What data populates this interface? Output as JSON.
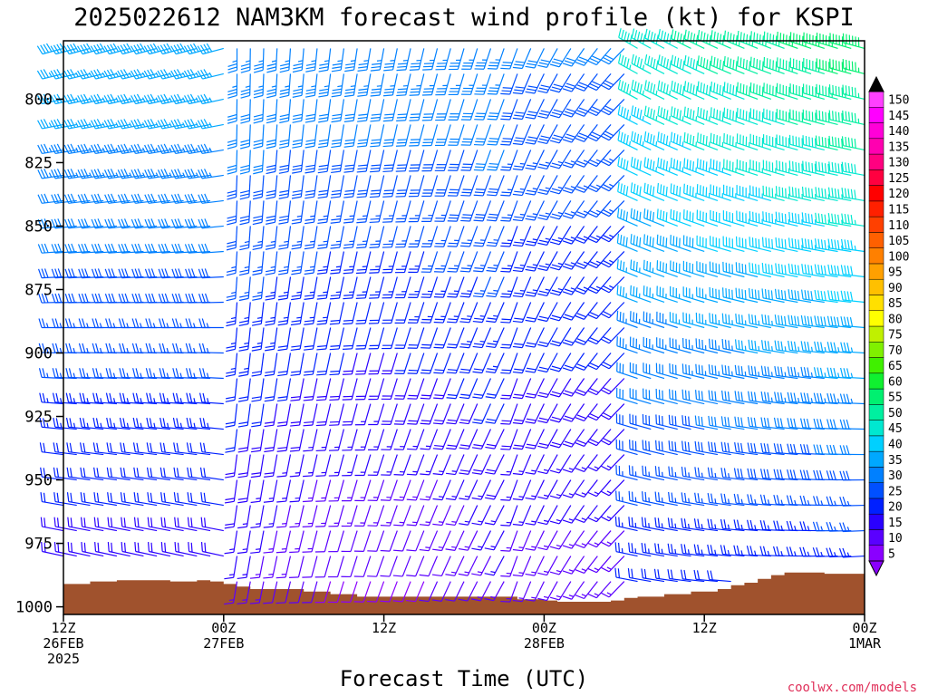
{
  "chart_data": {
    "type": "wind-barb-profile",
    "title": "2025022612 NAM3KM forecast wind profile (kt) for KSPI",
    "xlabel": "Forecast Time (UTC)",
    "credit": "coolwx.com/models",
    "y_axis": {
      "quantity": "pressure (hPa)",
      "range": [
        1003,
        777
      ],
      "ticks": [
        800,
        825,
        850,
        875,
        900,
        925,
        950,
        975,
        1000
      ],
      "tick_labels": [
        "800",
        "825",
        "850",
        "875",
        "900",
        "925",
        "950",
        "975",
        "1000"
      ]
    },
    "x_axis": {
      "range_hours": [
        0,
        60
      ],
      "ticks": [
        {
          "hour": 0,
          "lines": [
            "12Z",
            "26FEB",
            "2025"
          ]
        },
        {
          "hour": 12,
          "lines": [
            "00Z",
            "27FEB"
          ]
        },
        {
          "hour": 24,
          "lines": [
            "12Z"
          ]
        },
        {
          "hour": 36,
          "lines": [
            "00Z",
            "28FEB"
          ]
        },
        {
          "hour": 48,
          "lines": [
            "12Z"
          ]
        },
        {
          "hour": 60,
          "lines": [
            "00Z",
            "1MAR"
          ]
        }
      ]
    },
    "colorbar": {
      "levels": [
        5,
        10,
        15,
        20,
        25,
        30,
        35,
        40,
        45,
        50,
        55,
        60,
        65,
        70,
        75,
        80,
        85,
        90,
        95,
        100,
        105,
        110,
        115,
        120,
        125,
        130,
        135,
        140,
        145,
        150
      ],
      "labels": [
        "5",
        "10",
        "15",
        "20",
        "25",
        "30",
        "35",
        "40",
        "45",
        "50",
        "55",
        "60",
        "65",
        "70",
        "75",
        "80",
        "85",
        "90",
        "95",
        "100",
        "105",
        "110",
        "115",
        "120",
        "125",
        "130",
        "135",
        "140",
        "145",
        "150"
      ],
      "colors": [
        "#8a00ff",
        "#5a00ff",
        "#2a00ff",
        "#0020ff",
        "#0050ff",
        "#0080ff",
        "#00a8ff",
        "#00d0ff",
        "#00e8d0",
        "#00f0a0",
        "#00f070",
        "#10f030",
        "#40f000",
        "#80f000",
        "#c0f000",
        "#ffff00",
        "#ffe000",
        "#ffc000",
        "#ffa000",
        "#ff8000",
        "#ff6000",
        "#ff4000",
        "#ff2000",
        "#ff0000",
        "#ff0040",
        "#ff0080",
        "#ff00b0",
        "#ff00d8",
        "#ff00ff",
        "#ff40ff"
      ],
      "min_arrow_color": "#8a00ff",
      "max_arrow_color": "#000000"
    },
    "barb_pressure_levels": [
      780,
      790,
      800,
      810,
      820,
      830,
      840,
      850,
      860,
      870,
      880,
      890,
      900,
      910,
      920,
      930,
      940,
      950,
      960,
      970,
      980,
      990,
      1000
    ],
    "barb_hours": [
      0,
      1,
      2,
      3,
      4,
      5,
      6,
      7,
      8,
      9,
      10,
      11,
      12,
      13,
      14,
      15,
      16,
      17,
      18,
      19,
      20,
      21,
      22,
      23,
      24,
      25,
      26,
      27,
      28,
      29,
      30,
      31,
      32,
      33,
      34,
      35,
      36,
      37,
      38,
      39,
      40,
      41,
      42,
      43,
      44,
      45,
      46,
      47,
      48,
      49,
      50,
      51,
      52,
      53,
      54,
      55,
      56,
      57,
      58,
      59,
      60
    ],
    "surface_pressure": [
      {
        "hour": 0,
        "p": 991
      },
      {
        "hour": 2,
        "p": 990
      },
      {
        "hour": 4,
        "p": 989.5
      },
      {
        "hour": 6,
        "p": 989.5
      },
      {
        "hour": 8,
        "p": 990
      },
      {
        "hour": 10,
        "p": 989.5
      },
      {
        "hour": 11,
        "p": 990
      },
      {
        "hour": 12,
        "p": 991
      },
      {
        "hour": 13,
        "p": 992
      },
      {
        "hour": 14,
        "p": 993
      },
      {
        "hour": 16,
        "p": 993
      },
      {
        "hour": 18,
        "p": 994
      },
      {
        "hour": 20,
        "p": 995
      },
      {
        "hour": 22,
        "p": 996
      },
      {
        "hour": 26,
        "p": 996
      },
      {
        "hour": 30,
        "p": 996
      },
      {
        "hour": 32,
        "p": 996
      },
      {
        "hour": 34,
        "p": 997
      },
      {
        "hour": 36,
        "p": 997.5
      },
      {
        "hour": 37,
        "p": 998
      },
      {
        "hour": 40,
        "p": 998
      },
      {
        "hour": 41,
        "p": 997.5
      },
      {
        "hour": 42,
        "p": 996.5
      },
      {
        "hour": 43,
        "p": 996
      },
      {
        "hour": 45,
        "p": 995
      },
      {
        "hour": 47,
        "p": 994
      },
      {
        "hour": 49,
        "p": 993
      },
      {
        "hour": 50,
        "p": 991.5
      },
      {
        "hour": 51,
        "p": 990.5
      },
      {
        "hour": 52,
        "p": 989
      },
      {
        "hour": 53,
        "p": 987.5
      },
      {
        "hour": 54,
        "p": 986.5
      },
      {
        "hour": 55,
        "p": 986.5
      },
      {
        "hour": 57,
        "p": 987
      },
      {
        "hour": 60,
        "p": 987
      }
    ],
    "ground_color": "#a0522d"
  }
}
